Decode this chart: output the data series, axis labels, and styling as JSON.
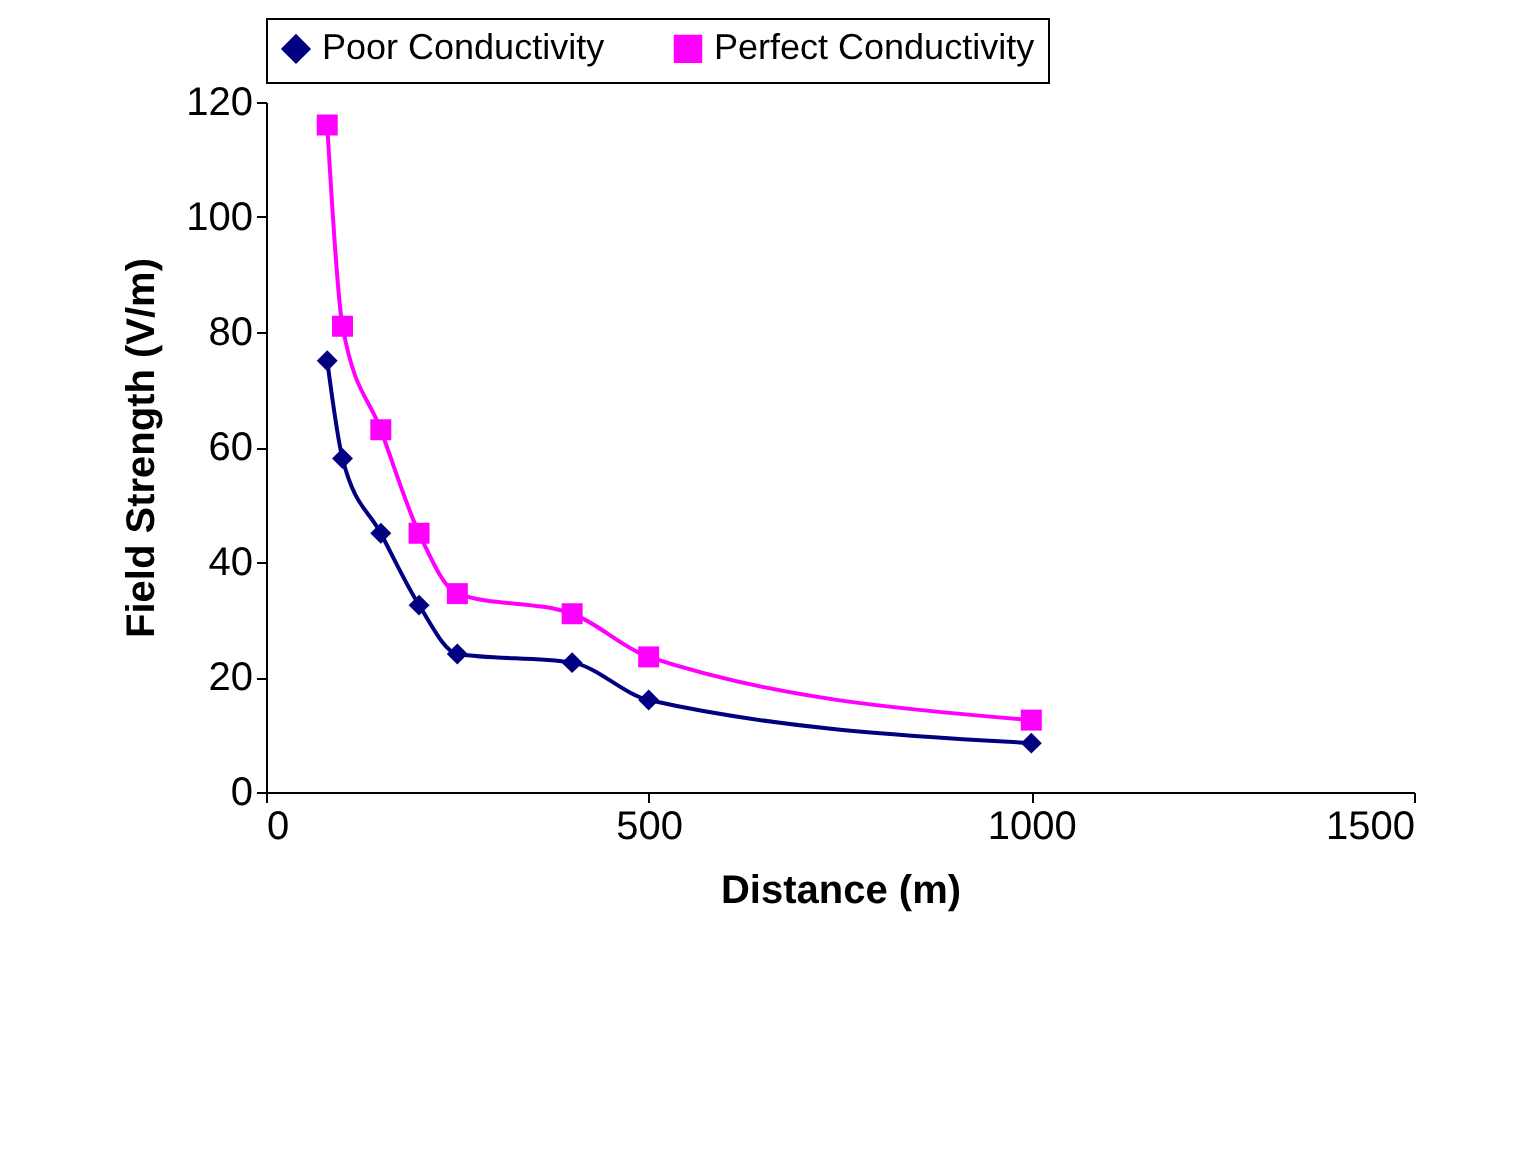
{
  "chart_data": {
    "type": "line",
    "xlabel": "Distance (m)",
    "ylabel": "Field Strength (V/m)",
    "x": [
      80,
      100,
      150,
      200,
      250,
      400,
      500,
      1000
    ],
    "series": [
      {
        "name": "Poor Conductivity",
        "color": "#000080",
        "marker": "diamond",
        "values": [
          75,
          58,
          45,
          32.5,
          24,
          22.5,
          16,
          8.5
        ]
      },
      {
        "name": "Perfect Conductivity",
        "color": "#ff00ff",
        "marker": "square",
        "values": [
          116,
          81,
          63,
          45,
          34.5,
          31,
          23.5,
          12.5
        ]
      }
    ],
    "xlim": [
      0,
      1500
    ],
    "xticks": [
      0,
      500,
      1000,
      1500
    ],
    "ylim": [
      0,
      120
    ],
    "yticks": [
      0,
      20,
      40,
      60,
      80,
      100,
      120
    ],
    "grid": false,
    "legend": "top",
    "line_style": "solid"
  }
}
